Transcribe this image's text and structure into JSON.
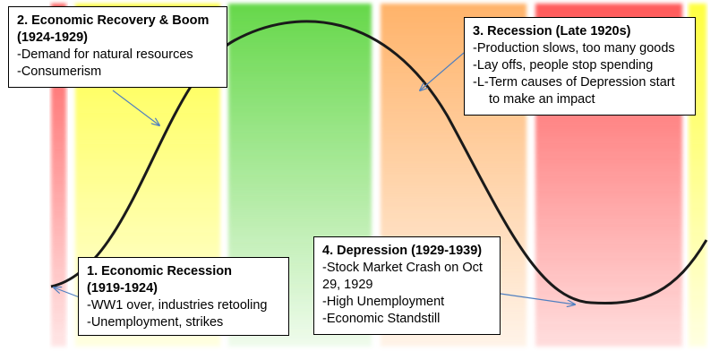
{
  "bands": [
    {
      "name": "red-band-start",
      "color": "#ff5a5a"
    },
    {
      "name": "yellow-band-1",
      "color": "#ffff40"
    },
    {
      "name": "green-band",
      "color": "#66d84a"
    },
    {
      "name": "orange-band",
      "color": "#ffb36a"
    },
    {
      "name": "red-band-main",
      "color": "#ff5a5a"
    },
    {
      "name": "yellow-band-end",
      "color": "#ffff40"
    }
  ],
  "curve_color": "#1a1a1a",
  "arrow_color": "#4f7fc0",
  "callouts": {
    "recession": {
      "title_line1": "1. Economic Recession",
      "title_line2": "(1919-1924)",
      "points": [
        "-WW1 over, industries retooling",
        "-Unemployment, strikes"
      ]
    },
    "boom": {
      "title_line1": "2. Economic Recovery & Boom",
      "title_line2": "(1924-1929)",
      "points": [
        "-Demand for natural resources",
        "-Consumerism"
      ]
    },
    "late_recession": {
      "title": "3. Recession (Late 1920s)",
      "points": [
        "-Production slows, too many goods",
        "-Lay offs, people stop spending",
        "-L-Term causes of Depression start"
      ],
      "continuation": "to make an impact"
    },
    "depression": {
      "title": "4. Depression (1929-1939)",
      "points": [
        "-Stock Market Crash on Oct",
        "29, 1929",
        "-High Unemployment",
        "-Economic Standstill"
      ]
    }
  }
}
